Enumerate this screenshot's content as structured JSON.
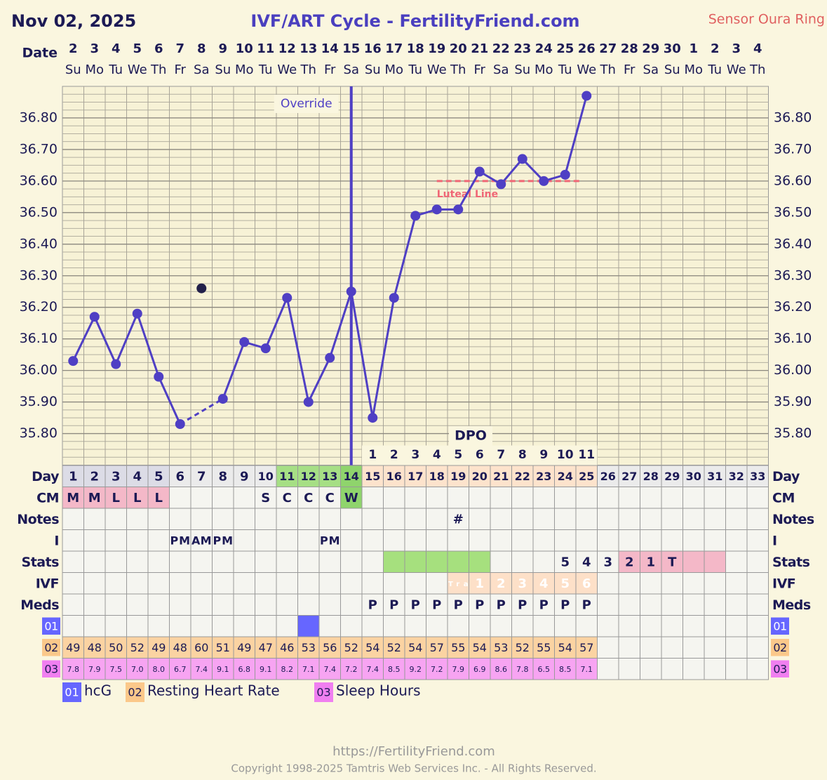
{
  "header": {
    "date": "Nov 02, 2025",
    "title": "IVF/ART Cycle - FertilityFriend.com",
    "sensor": "Sensor Oura Ring",
    "date_label": "Date"
  },
  "chart_data": {
    "type": "line",
    "dates": [
      2,
      3,
      4,
      5,
      6,
      7,
      8,
      9,
      10,
      11,
      12,
      13,
      14,
      15,
      16,
      17,
      18,
      19,
      20,
      21,
      22,
      23,
      24,
      25,
      26,
      27,
      28,
      29,
      30,
      1,
      2,
      3,
      4
    ],
    "weekdays": [
      "Su",
      "Mo",
      "Tu",
      "We",
      "Th",
      "Fr",
      "Sa",
      "Su",
      "Mo",
      "Tu",
      "We",
      "Th",
      "Fr",
      "Sa",
      "Su",
      "Mo",
      "Tu",
      "We",
      "Th",
      "Fr",
      "Sa",
      "Su",
      "Mo",
      "Tu",
      "We",
      "Th",
      "Fr",
      "Sa",
      "Su",
      "Mo",
      "Tu",
      "We",
      "Th"
    ],
    "values": [
      36.03,
      36.17,
      36.02,
      36.18,
      35.98,
      35.83,
      null,
      35.91,
      36.09,
      36.07,
      36.23,
      35.9,
      36.04,
      36.25,
      35.85,
      36.23,
      36.49,
      36.51,
      36.51,
      36.63,
      36.59,
      36.67,
      36.6,
      36.62,
      36.87,
      null,
      null,
      null,
      null,
      null,
      null,
      null,
      null
    ],
    "color": "#4f3fc4",
    "discarded": [
      null,
      null,
      null,
      null,
      null,
      null,
      36.26,
      null,
      null,
      null,
      null,
      null,
      null,
      null,
      null,
      null,
      null,
      null,
      null,
      null,
      null,
      null,
      null,
      null,
      null,
      null,
      null,
      null,
      null,
      null,
      null,
      null,
      null
    ],
    "discarded_color": "#22204a",
    "ylim": [
      35.7,
      36.9
    ],
    "yticks": [
      {
        "value": 35.8,
        "label": "35.80"
      },
      {
        "value": 35.9,
        "label": "35.90"
      },
      {
        "value": 36.0,
        "label": "36.00"
      },
      {
        "value": 36.1,
        "label": "36.10"
      },
      {
        "value": 36.2,
        "label": "36.20"
      },
      {
        "value": 36.3,
        "label": "36.30"
      },
      {
        "value": 36.4,
        "label": "36.40"
      },
      {
        "value": 36.5,
        "label": "36.50"
      },
      {
        "value": 36.6,
        "label": "36.60"
      },
      {
        "value": 36.7,
        "label": "36.70"
      },
      {
        "value": 36.8,
        "label": "36.80"
      }
    ],
    "grid": true,
    "override": {
      "day": 14,
      "label": "Override",
      "color": "#4f3fc4"
    },
    "luteal_line": {
      "value": 36.6,
      "from_day": 18,
      "to_day": 25,
      "label": "Luteal Line",
      "color": "#f06675"
    },
    "dpo": {
      "label": "DPO",
      "start_day": 15,
      "values": [
        1,
        2,
        3,
        4,
        5,
        6,
        7,
        8,
        9,
        10,
        11
      ]
    }
  },
  "table": {
    "rows": [
      {
        "label": "Day",
        "cells": [
          1,
          2,
          3,
          4,
          5,
          6,
          7,
          8,
          9,
          10,
          11,
          12,
          13,
          14,
          15,
          16,
          17,
          18,
          19,
          20,
          21,
          22,
          23,
          24,
          25,
          26,
          27,
          28,
          29,
          30,
          31,
          32,
          33
        ],
        "fills": [
          "#dcdce6",
          "#dcdce6",
          "#dcdce6",
          "#dcdce6",
          "#dcdce6",
          "#ebebeb",
          "#ebebeb",
          "#ebebeb",
          "#ebebeb",
          "#ebebeb",
          "#a6df85",
          "#a6df85",
          "#a6df85",
          "#8fd46c",
          "#fde3cc",
          "#fde3cc",
          "#fde3cc",
          "#fde3cc",
          "#fde3cc",
          "#fde3cc",
          "#fde3cc",
          "#fde3cc",
          "#fde3cc",
          "#fde3cc",
          "#fde3cc",
          "#ebebeb",
          "#ebebeb",
          "#ebebeb",
          "#ebebeb",
          "#ebebeb",
          "#ebebeb",
          "#ebebeb",
          "#ebebeb"
        ]
      },
      {
        "label": "CM",
        "cells": [
          "M",
          "M",
          "L",
          "L",
          "L",
          null,
          null,
          null,
          null,
          "S",
          "C",
          "C",
          "C",
          "W",
          null,
          null,
          null,
          null,
          null,
          null,
          null,
          null,
          null,
          null,
          null,
          null,
          null,
          null,
          null,
          null,
          null,
          null,
          null
        ],
        "fills": [
          "#f4b8c8",
          "#f4b8c8",
          "#f4b8c8",
          "#f4b8c8",
          "#f4b8c8",
          null,
          null,
          null,
          null,
          null,
          null,
          null,
          null,
          "#8fd46c",
          null,
          null,
          null,
          null,
          null,
          null,
          null,
          null,
          null,
          null,
          null,
          null,
          null,
          null,
          null,
          null,
          null,
          null,
          null
        ]
      },
      {
        "label": "Notes",
        "cells": [
          null,
          null,
          null,
          null,
          null,
          null,
          null,
          null,
          null,
          null,
          null,
          null,
          null,
          null,
          null,
          null,
          null,
          null,
          "#",
          null,
          null,
          null,
          null,
          null,
          null,
          null,
          null,
          null,
          null,
          null,
          null,
          null,
          null
        ]
      },
      {
        "label": "I",
        "cells": [
          null,
          null,
          null,
          null,
          null,
          "PM",
          "AM",
          "PM",
          null,
          null,
          null,
          null,
          "PM",
          null,
          null,
          null,
          null,
          null,
          null,
          null,
          null,
          null,
          null,
          null,
          null,
          null,
          null,
          null,
          null,
          null,
          null,
          null,
          null
        ]
      },
      {
        "label": "Stats",
        "cells": [
          null,
          null,
          null,
          null,
          null,
          null,
          null,
          null,
          null,
          null,
          null,
          null,
          null,
          null,
          null,
          null,
          null,
          null,
          null,
          null,
          null,
          null,
          null,
          "5",
          "4",
          "3",
          "2",
          "1",
          "T",
          null,
          null,
          null,
          null
        ],
        "fills": [
          null,
          null,
          null,
          null,
          null,
          null,
          null,
          null,
          null,
          null,
          null,
          null,
          null,
          null,
          null,
          "#a6e07e",
          "#a6e07e",
          "#a6e07e",
          "#a6e07e",
          "#a6e07e",
          null,
          null,
          null,
          null,
          null,
          null,
          "#f4b8c8",
          "#f4b8c8",
          "#f4b8c8",
          "#f4b8c8",
          "#f4b8c8",
          null,
          null
        ]
      },
      {
        "label": "IVF",
        "cells": [
          null,
          null,
          null,
          null,
          null,
          null,
          null,
          null,
          null,
          null,
          null,
          null,
          null,
          null,
          null,
          null,
          null,
          null,
          "Tra",
          "1",
          "2",
          "3",
          "4",
          "5",
          "6",
          null,
          null,
          null,
          null,
          null,
          null,
          null,
          null
        ],
        "fills": [
          null,
          null,
          null,
          null,
          null,
          null,
          null,
          null,
          null,
          null,
          null,
          null,
          null,
          null,
          null,
          null,
          null,
          null,
          "#fde0c8",
          "#fde0c8",
          "#fde0c8",
          "#fde0c8",
          "#fde0c8",
          "#fde0c8",
          "#fde0c8",
          null,
          null,
          null,
          null,
          null,
          null,
          null,
          null
        ],
        "text_color": "#ffffff"
      },
      {
        "label": "Meds",
        "cells": [
          null,
          null,
          null,
          null,
          null,
          null,
          null,
          null,
          null,
          null,
          null,
          null,
          null,
          null,
          "P",
          "P",
          "P",
          "P",
          "P",
          "P",
          "P",
          "P",
          "P",
          "P",
          "P",
          null,
          null,
          null,
          null,
          null,
          null,
          null,
          null
        ]
      },
      {
        "label": "01",
        "label_color": "#6666ff",
        "label_text_color": "#ffffff",
        "cells": [
          null,
          null,
          null,
          null,
          null,
          null,
          null,
          null,
          null,
          null,
          null,
          null,
          null,
          null,
          null,
          null,
          null,
          null,
          null,
          null,
          null,
          null,
          null,
          null,
          null,
          null,
          null,
          null,
          null,
          null,
          null,
          null,
          null
        ],
        "fills": [
          null,
          null,
          null,
          null,
          null,
          null,
          null,
          null,
          null,
          null,
          null,
          "#6666ff",
          null,
          null,
          null,
          null,
          null,
          null,
          null,
          null,
          null,
          null,
          null,
          null,
          null,
          null,
          null,
          null,
          null,
          null,
          null,
          null,
          null
        ]
      },
      {
        "label": "02",
        "label_color": "#fbc88a",
        "cells": [
          49,
          48,
          50,
          52,
          49,
          48,
          60,
          51,
          49,
          47,
          46,
          53,
          56,
          52,
          54,
          52,
          54,
          57,
          55,
          54,
          53,
          52,
          55,
          54,
          57,
          null,
          null,
          null,
          null,
          null,
          null,
          null,
          null
        ],
        "fills": [
          "#fbd3a2",
          "#fbd3a2",
          "#fbd3a2",
          "#fbd3a2",
          "#fbd3a2",
          "#fbd3a2",
          "#fbd3a2",
          "#fbd3a2",
          "#fbd3a2",
          "#fbd3a2",
          "#fbd3a2",
          "#fbd3a2",
          "#fbd3a2",
          "#fbd3a2",
          "#fbd3a2",
          "#fbd3a2",
          "#fbd3a2",
          "#fbd3a2",
          "#fbd3a2",
          "#fbd3a2",
          "#fbd3a2",
          "#fbd3a2",
          "#fbd3a2",
          "#fbd3a2",
          "#fbd3a2",
          null,
          null,
          null,
          null,
          null,
          null,
          null,
          null
        ]
      },
      {
        "label": "03",
        "label_color": "#f07ff0",
        "cells": [
          "7.8",
          "7.9",
          "7.5",
          "7.0",
          "8.0",
          "6.7",
          "7.4",
          "9.1",
          "6.8",
          "9.1",
          "8.2",
          "7.1",
          "7.4",
          "7.2",
          "7.4",
          "8.5",
          "9.2",
          "7.2",
          "7.9",
          "6.9",
          "8.6",
          "7.8",
          "6.5",
          "8.5",
          "7.1",
          null,
          null,
          null,
          null,
          null,
          null,
          null,
          null
        ],
        "fills": [
          "#f7a4f2",
          "#f7a4f2",
          "#f7a4f2",
          "#f7a4f2",
          "#f7a4f2",
          "#f7a4f2",
          "#f7a4f2",
          "#f7a4f2",
          "#f7a4f2",
          "#f7a4f2",
          "#f7a4f2",
          "#f7a4f2",
          "#f7a4f2",
          "#f7a4f2",
          "#f7a4f2",
          "#f7a4f2",
          "#f7a4f2",
          "#f7a4f2",
          "#f7a4f2",
          "#f7a4f2",
          "#f7a4f2",
          "#f7a4f2",
          "#f7a4f2",
          "#f7a4f2",
          "#f7a4f2",
          null,
          null,
          null,
          null,
          null,
          null,
          null,
          null
        ]
      }
    ]
  },
  "legend": [
    {
      "code": "01",
      "label": "hcG",
      "color": "#6666ff",
      "text_color": "#ffffff"
    },
    {
      "code": "02",
      "label": "Resting Heart Rate",
      "color": "#fbc88a"
    },
    {
      "code": "03",
      "label": "Sleep Hours",
      "color": "#f07ff0"
    }
  ],
  "footer": {
    "url": "https://FertilityFriend.com",
    "copyright": "Copyright 1998-2025 Tamtris Web Services Inc. - All Rights Reserved."
  }
}
